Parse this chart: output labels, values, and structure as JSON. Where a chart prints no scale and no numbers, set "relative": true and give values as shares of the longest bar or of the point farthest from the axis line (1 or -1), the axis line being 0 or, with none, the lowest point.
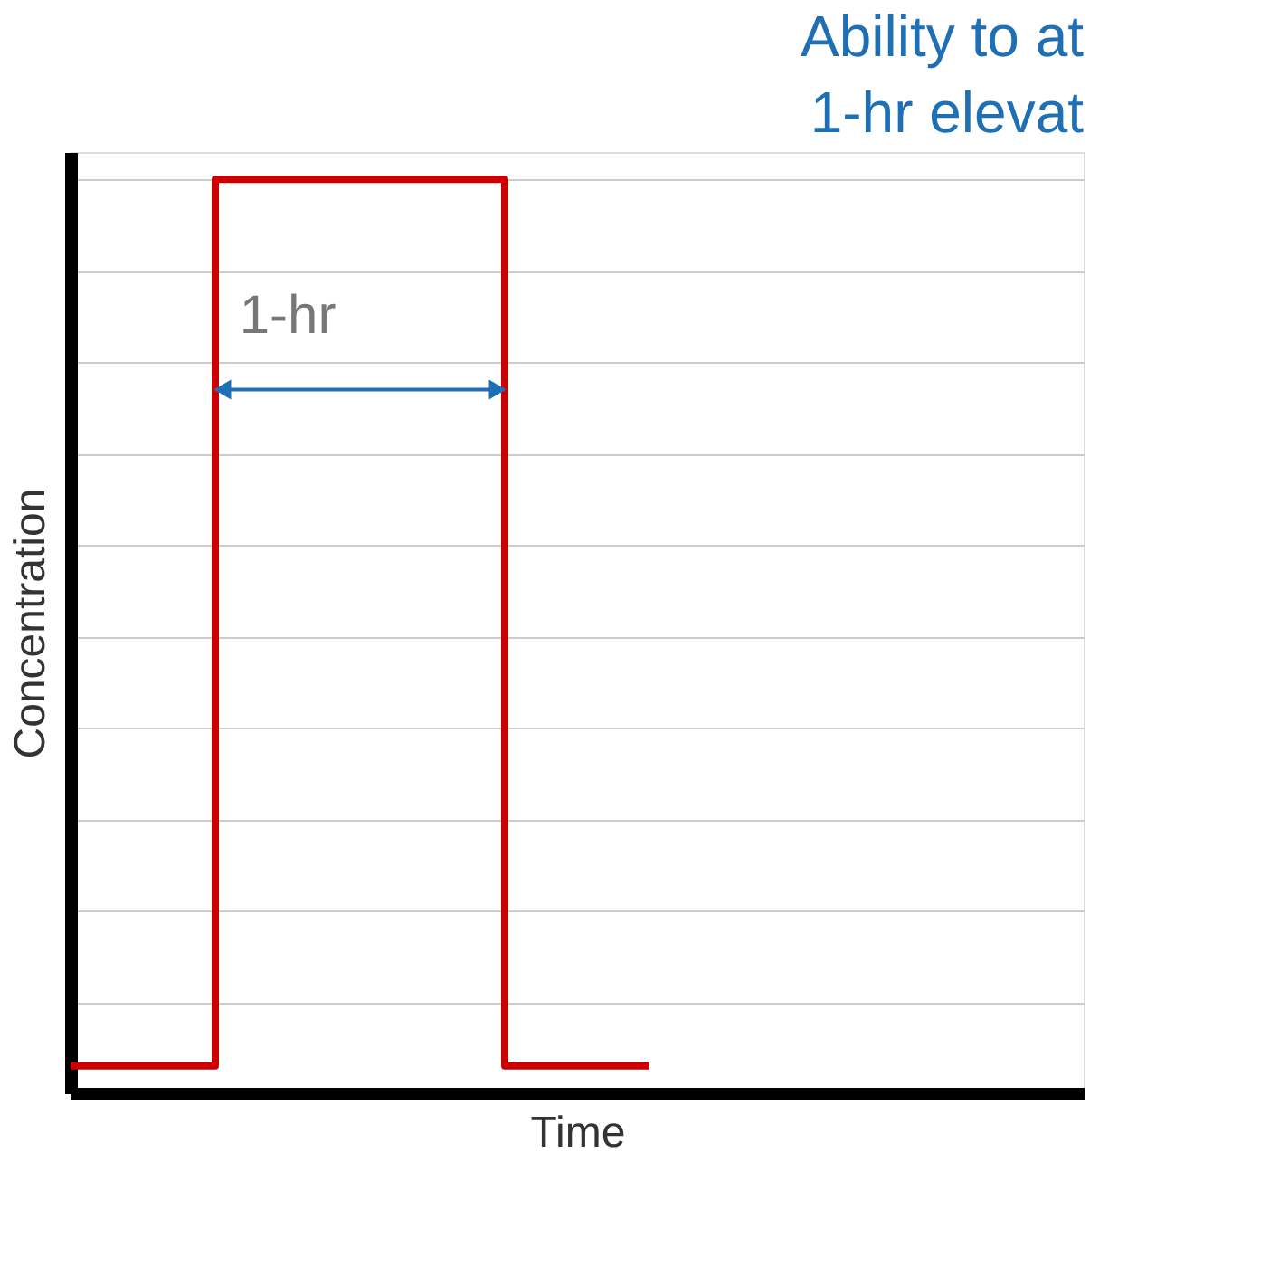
{
  "chart_data": {
    "type": "step",
    "relative": true,
    "title": [
      "Ability to at",
      "1-hr elevat"
    ],
    "xlabel": "Time",
    "ylabel": "Concentration",
    "categories": [
      null,
      null,
      null,
      null,
      null,
      null,
      null,
      null
    ],
    "series": [
      {
        "color": "#cc0000",
        "values": [
          0.03,
          1,
          1,
          0.03,
          0.03,
          null,
          null,
          null
        ]
      }
    ],
    "annotations": [
      "1-hr"
    ],
    "grid": "y",
    "line_style": "solid",
    "marker": "none"
  }
}
